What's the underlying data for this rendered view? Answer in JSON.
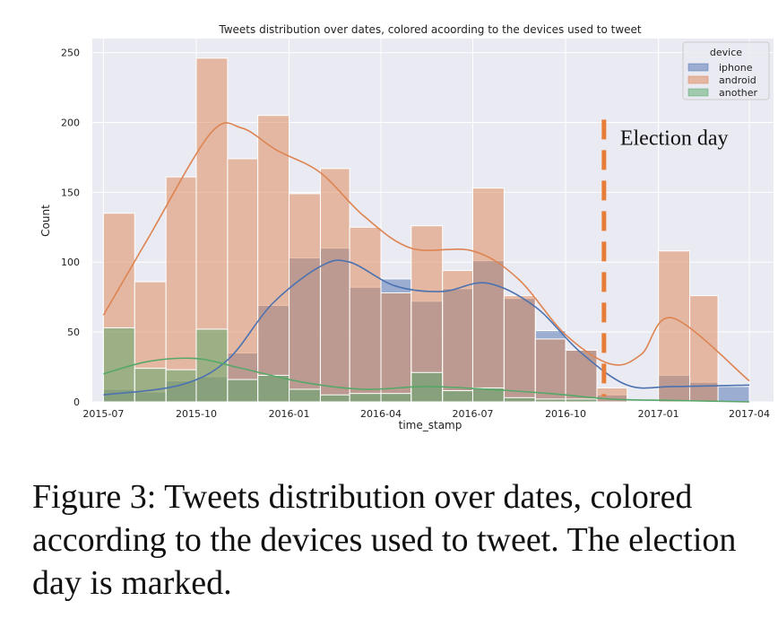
{
  "chart_data": {
    "type": "histogram",
    "title": "Tweets distribution over dates, colored acoording to the devices used to tweet",
    "xlabel": "time_stamp",
    "ylabel": "Count",
    "x_ticks": [
      "2015-07",
      "2015-10",
      "2016-01",
      "2016-04",
      "2016-07",
      "2016-10",
      "2017-01",
      "2017-04"
    ],
    "y_ticks": [
      0,
      50,
      100,
      150,
      200,
      250
    ],
    "xlim": [
      "2015-06-20",
      "2017-04-25"
    ],
    "ylim": [
      0,
      260
    ],
    "grid": true,
    "legend_title": "device",
    "legend_position": "top-right",
    "bin_edges": [
      "2015-07-01",
      "2015-08-01",
      "2015-09-01",
      "2015-10-01",
      "2015-11-01",
      "2015-12-01",
      "2016-01-01",
      "2016-02-01",
      "2016-03-01",
      "2016-04-01",
      "2016-05-01",
      "2016-06-01",
      "2016-07-01",
      "2016-08-01",
      "2016-09-01",
      "2016-10-01",
      "2016-11-01",
      "2016-12-01",
      "2017-01-01",
      "2017-02-01",
      "2017-03-01",
      "2017-04-01"
    ],
    "series": [
      {
        "name": "iphone",
        "color": "#4c72b0",
        "values": [
          9,
          7,
          15,
          18,
          35,
          69,
          103,
          110,
          82,
          88,
          72,
          81,
          101,
          74,
          51,
          37,
          5,
          0,
          19,
          14,
          11
        ],
        "kde_x": [
          "2015-07-01",
          "2015-09-15",
          "2015-11-01",
          "2015-12-15",
          "2016-02-01",
          "2016-03-01",
          "2016-04-15",
          "2016-06-01",
          "2016-07-15",
          "2016-09-01",
          "2016-10-15",
          "2016-12-01",
          "2017-01-15",
          "2017-04-01"
        ],
        "kde_y": [
          5,
          12,
          30,
          70,
          97,
          100,
          83,
          79,
          85,
          68,
          36,
          12,
          11,
          12
        ]
      },
      {
        "name": "android",
        "color": "#dd8452",
        "values": [
          135,
          86,
          161,
          246,
          174,
          205,
          149,
          167,
          125,
          78,
          126,
          94,
          153,
          76,
          45,
          37,
          10,
          0,
          108,
          76,
          0
        ],
        "kde_x": [
          "2015-07-01",
          "2015-08-15",
          "2015-10-15",
          "2015-11-15",
          "2015-12-20",
          "2016-02-01",
          "2016-03-15",
          "2016-05-01",
          "2016-07-01",
          "2016-08-15",
          "2016-10-01",
          "2016-11-15",
          "2016-12-15",
          "2017-01-15",
          "2017-04-01"
        ],
        "kde_y": [
          62,
          118,
          192,
          196,
          180,
          164,
          133,
          110,
          108,
          88,
          48,
          27,
          34,
          60,
          15
        ]
      },
      {
        "name": "another",
        "color": "#55a868",
        "values": [
          53,
          24,
          23,
          52,
          16,
          19,
          9,
          5,
          6,
          6,
          21,
          8,
          10,
          3,
          2,
          2,
          0,
          0,
          0,
          0,
          0
        ],
        "kde_x": [
          "2015-07-01",
          "2015-08-15",
          "2015-10-01",
          "2015-11-15",
          "2016-01-15",
          "2016-03-15",
          "2016-05-15",
          "2016-07-15",
          "2016-09-15",
          "2016-11-15",
          "2017-01-15",
          "2017-04-01"
        ],
        "kde_y": [
          20,
          29,
          31,
          24,
          14,
          9,
          11,
          9,
          6,
          2,
          1,
          0
        ]
      }
    ],
    "annotations": [
      {
        "text": "Election day",
        "x": "2016-11-08",
        "line_style": "dashed",
        "color": "#e67e3a"
      }
    ]
  },
  "caption": "Figure 3: Tweets distribution over dates, colored according to the devices used to tweet. The election day is marked."
}
